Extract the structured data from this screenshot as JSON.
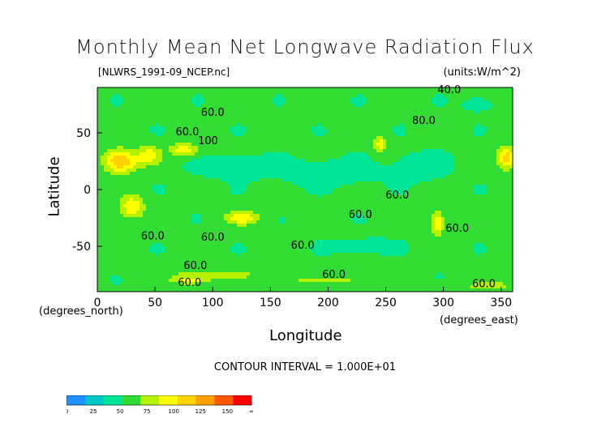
{
  "title": "Monthly Mean Net Longwave Radiation Flux",
  "subtitle_file": "[NLWRS_1991-09_NCEP.nc]",
  "units": "(units:W/m^2)",
  "contour_interval": "CONTOUR INTERVAL = 1.000E+01",
  "colorbar": {
    "colors": [
      "#1e90ff",
      "#00c8c8",
      "#00e496",
      "#32dc32",
      "#b4f000",
      "#ffff00",
      "#ffd200",
      "#ffa000",
      "#ff5a00",
      "#ff0000"
    ],
    "labels": [
      "0",
      "25",
      "50",
      "75",
      "100",
      "125",
      "150",
      "∞"
    ]
  },
  "chart_data": {
    "type": "heatmap",
    "title": "Monthly Mean Net Longwave Radiation Flux",
    "xlabel": "Longitude",
    "ylabel": "Latitude",
    "x_unit_label": "(degrees_east)",
    "y_unit_label": "(degrees_north)",
    "xlim": [
      0,
      360
    ],
    "ylim": [
      -90,
      90
    ],
    "x_ticks": [
      0,
      50,
      100,
      150,
      200,
      250,
      300,
      350
    ],
    "y_ticks": [
      50,
      0,
      -50
    ],
    "contour_labels": [
      {
        "text": "40.0",
        "x": 305,
        "y": 85
      },
      {
        "text": "60.0",
        "x": 100,
        "y": 65
      },
      {
        "text": "80.0",
        "x": 283,
        "y": 58
      },
      {
        "text": "60.0",
        "x": 78,
        "y": 48
      },
      {
        "text": "100",
        "x": 96,
        "y": 40
      },
      {
        "text": "60.0",
        "x": 260,
        "y": -8
      },
      {
        "text": "60.0",
        "x": 228,
        "y": -25
      },
      {
        "text": "60.0",
        "x": 48,
        "y": -44
      },
      {
        "text": "60.0",
        "x": 100,
        "y": -45
      },
      {
        "text": "60.0",
        "x": 178,
        "y": -52
      },
      {
        "text": "60.0",
        "x": 312,
        "y": -37
      },
      {
        "text": "60.0",
        "x": 85,
        "y": -70
      },
      {
        "text": "60.0",
        "x": 205,
        "y": -78
      },
      {
        "text": "60.0",
        "x": 80,
        "y": -85
      },
      {
        "text": "60.0",
        "x": 335,
        "y": -86
      }
    ]
  }
}
